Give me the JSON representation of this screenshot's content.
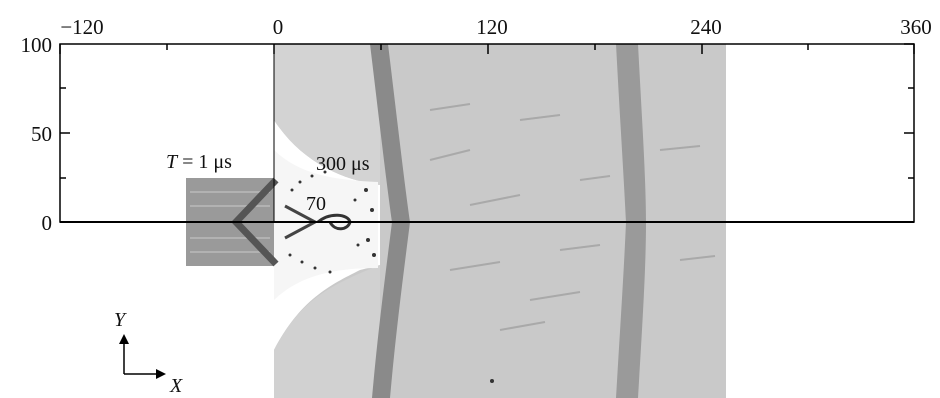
{
  "diagram": {
    "x_ticks": [
      "−120",
      "0",
      "120",
      "240",
      "360"
    ],
    "y_ticks": [
      "100",
      "50",
      "0"
    ],
    "labels": {
      "time_initial": "T = 1 μs",
      "time_initial_var": "T",
      "time_initial_rest": " = 1 μs",
      "time_mid": "70",
      "time_final": "300 μs"
    },
    "axes_indicator": {
      "y": "Y",
      "x": "X"
    },
    "colors": {
      "background": "#ffffff",
      "simulation_gray": "#c8c8c8",
      "shock_band": "#8a8a8a",
      "projectile_block": "#9a9a9a",
      "frame": "#000000"
    }
  }
}
